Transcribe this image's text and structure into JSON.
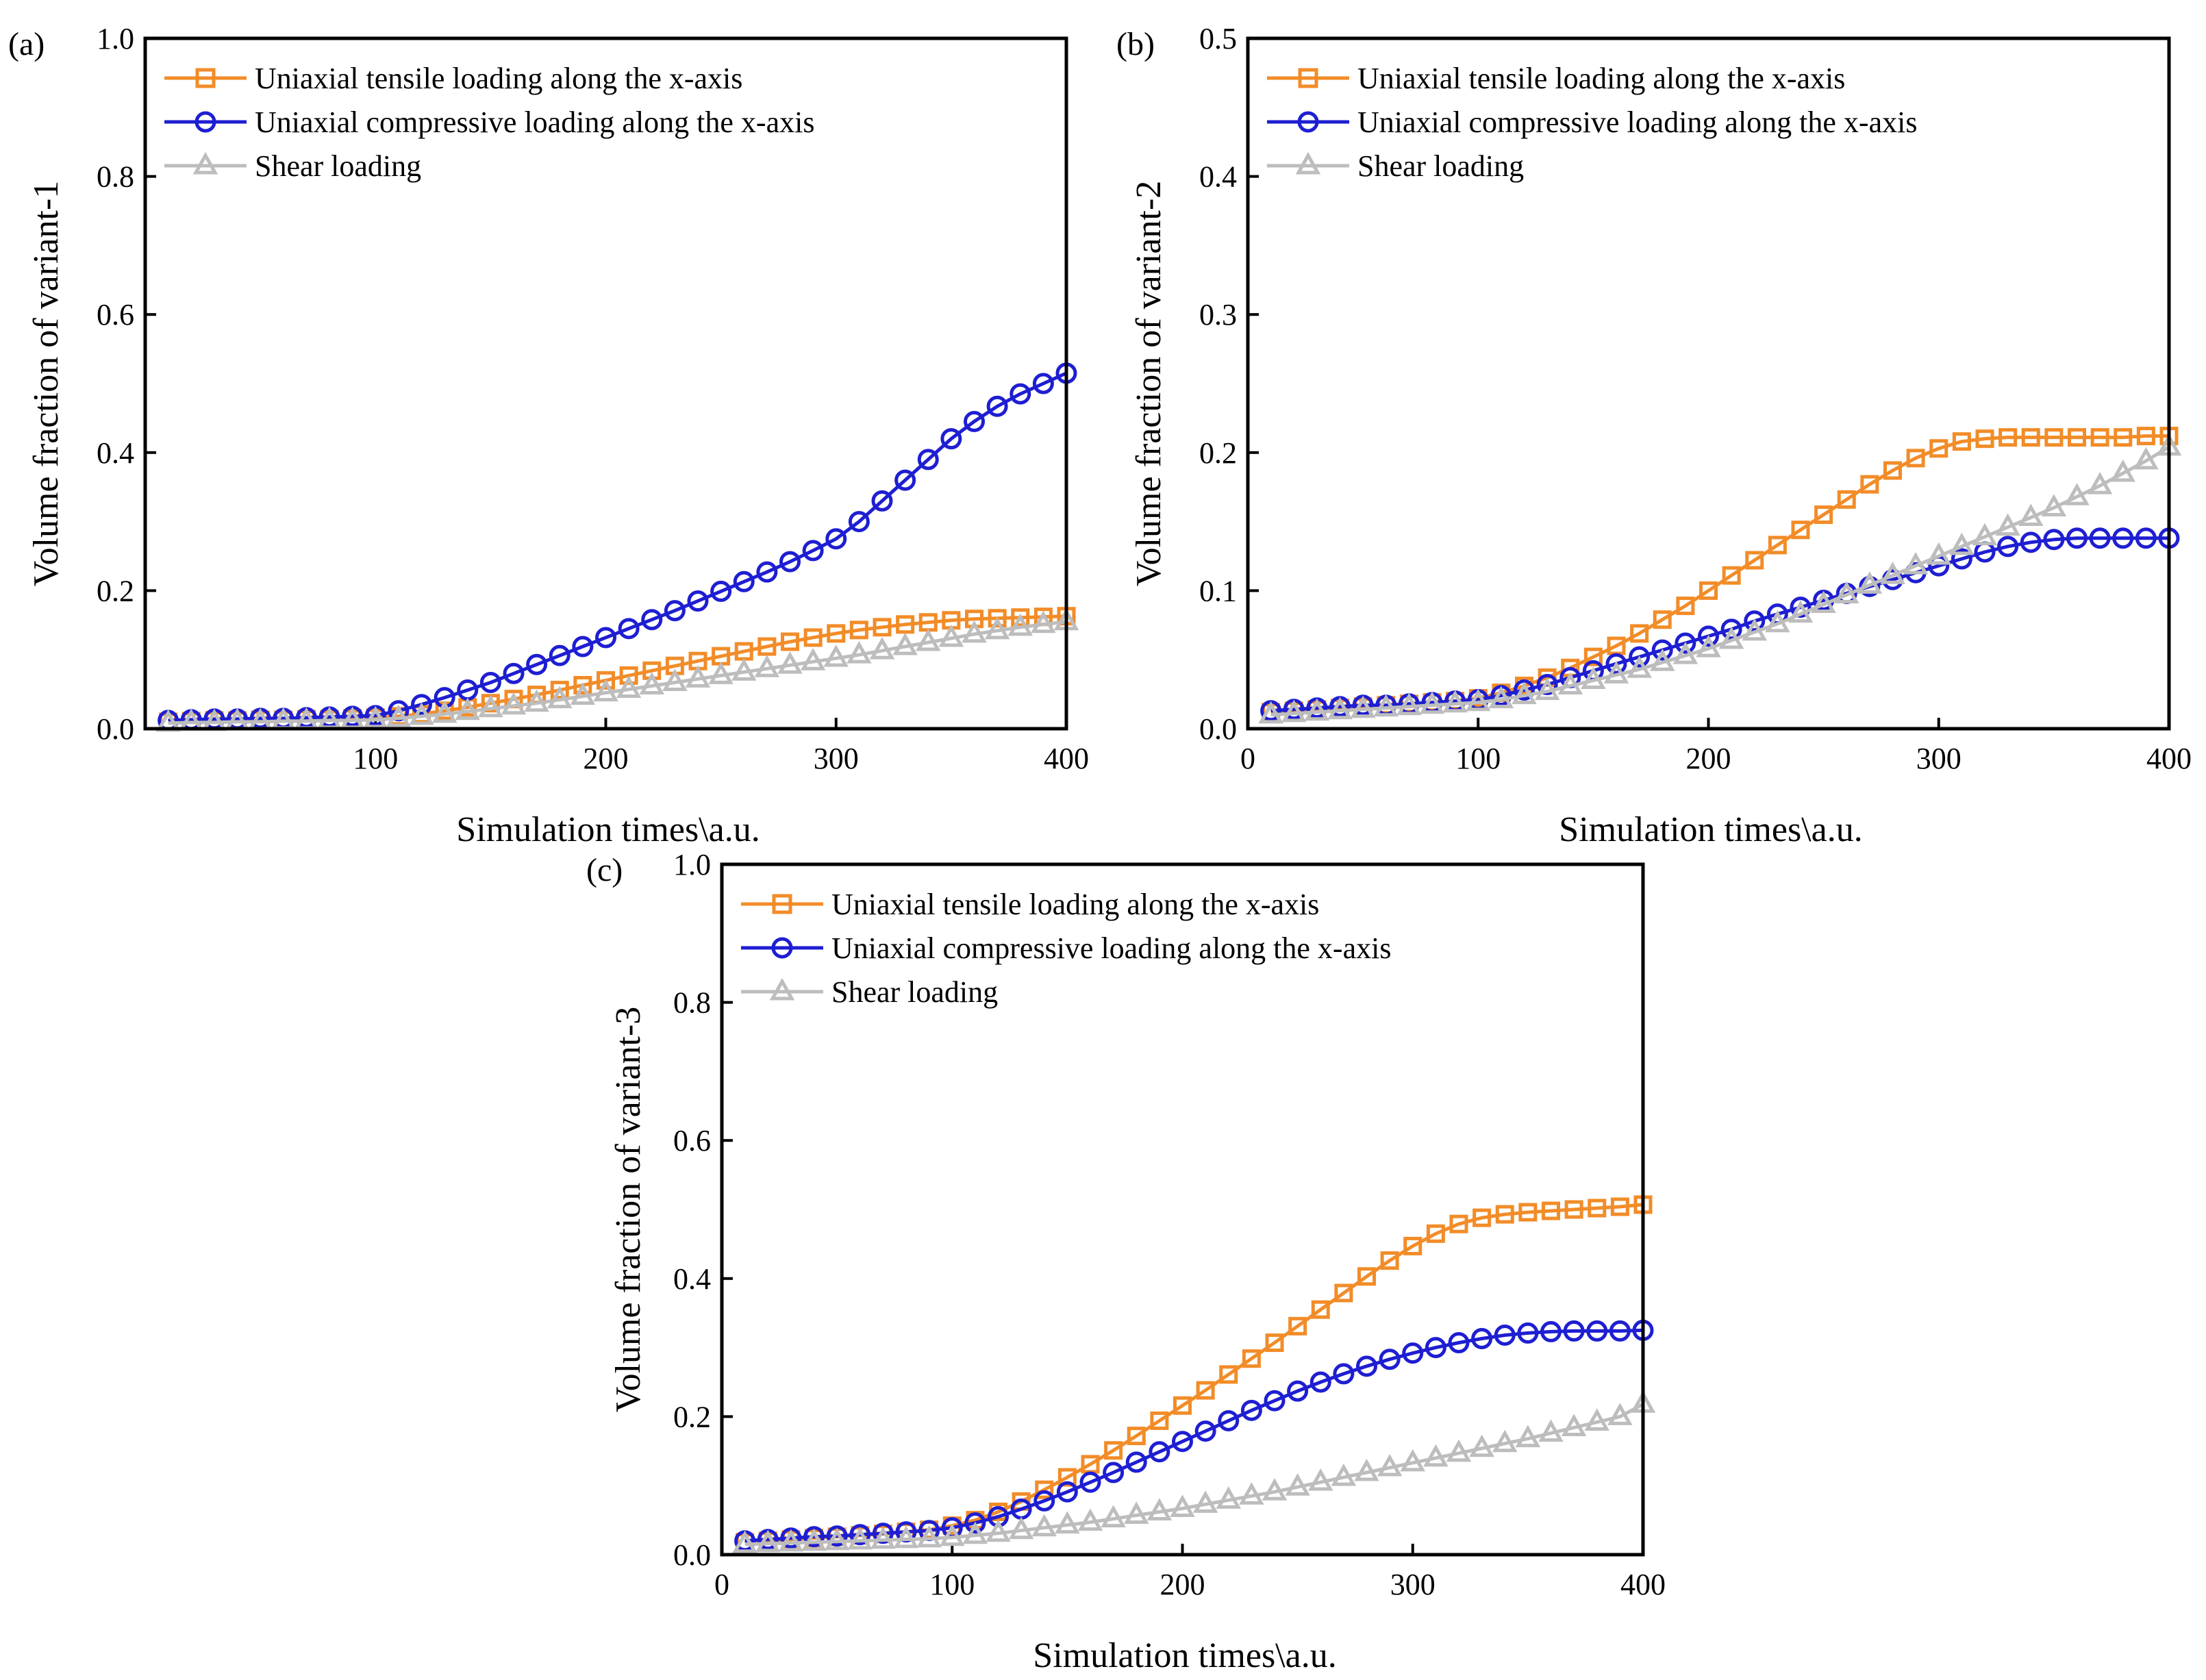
{
  "colors": {
    "tensile": "#F28C28",
    "compressive": "#1E1ED2",
    "shear": "#BDBDBD",
    "axis": "#000000"
  },
  "chart_data": [
    {
      "type": "line",
      "panel_label": "(a)",
      "xlabel": "Simulation  times\\a.u.",
      "ylabel": "Volume fraction of variant-1",
      "xlim": [
        0,
        400
      ],
      "ylim": [
        0.0,
        1.0
      ],
      "xticks": [
        100,
        200,
        300,
        400
      ],
      "xtick_labels": [
        "100",
        "200",
        "300",
        "400"
      ],
      "yticks": [
        0.0,
        0.2,
        0.4,
        0.6,
        0.8,
        1.0
      ],
      "ytick_labels": [
        "0.0",
        "0.2",
        "0.4",
        "0.6",
        "0.8",
        "1.0"
      ],
      "legend_position": "top-left",
      "x": [
        10,
        20,
        30,
        40,
        50,
        60,
        70,
        80,
        90,
        100,
        110,
        120,
        130,
        140,
        150,
        160,
        170,
        180,
        190,
        200,
        210,
        220,
        230,
        240,
        250,
        260,
        270,
        280,
        290,
        300,
        310,
        320,
        330,
        340,
        350,
        360,
        370,
        380,
        390,
        400
      ],
      "series": [
        {
          "name": "Uniaxial tensile loading along the x-axis",
          "marker": "square",
          "color_key": "tensile",
          "values": [
            0.01,
            0.011,
            0.012,
            0.012,
            0.013,
            0.013,
            0.014,
            0.014,
            0.015,
            0.016,
            0.018,
            0.021,
            0.026,
            0.031,
            0.037,
            0.043,
            0.049,
            0.056,
            0.063,
            0.07,
            0.077,
            0.084,
            0.091,
            0.098,
            0.105,
            0.112,
            0.119,
            0.126,
            0.132,
            0.138,
            0.143,
            0.147,
            0.151,
            0.154,
            0.157,
            0.159,
            0.16,
            0.161,
            0.162,
            0.163
          ]
        },
        {
          "name": "Uniaxial compressive loading along the x-axis",
          "marker": "circle",
          "color_key": "compressive",
          "values": [
            0.012,
            0.013,
            0.014,
            0.014,
            0.015,
            0.015,
            0.016,
            0.017,
            0.018,
            0.019,
            0.026,
            0.035,
            0.045,
            0.056,
            0.067,
            0.08,
            0.093,
            0.106,
            0.119,
            0.132,
            0.145,
            0.158,
            0.171,
            0.185,
            0.199,
            0.213,
            0.227,
            0.242,
            0.258,
            0.275,
            0.3,
            0.33,
            0.36,
            0.39,
            0.42,
            0.445,
            0.467,
            0.485,
            0.5,
            0.515
          ]
        },
        {
          "name": "Shear loading",
          "marker": "triangle",
          "color_key": "shear",
          "values": [
            0.008,
            0.009,
            0.009,
            0.01,
            0.01,
            0.011,
            0.011,
            0.012,
            0.012,
            0.013,
            0.015,
            0.018,
            0.021,
            0.025,
            0.029,
            0.033,
            0.037,
            0.042,
            0.047,
            0.052,
            0.057,
            0.062,
            0.067,
            0.072,
            0.077,
            0.082,
            0.087,
            0.092,
            0.097,
            0.102,
            0.107,
            0.113,
            0.119,
            0.125,
            0.131,
            0.137,
            0.142,
            0.147,
            0.151,
            0.155
          ]
        }
      ]
    },
    {
      "type": "line",
      "panel_label": "(b)",
      "xlabel": "Simulation  times\\a.u.",
      "ylabel": "Volume fraction of variant-2",
      "xlim": [
        0,
        400
      ],
      "ylim": [
        0.0,
        0.5
      ],
      "xticks": [
        0,
        100,
        200,
        300,
        400
      ],
      "xtick_labels": [
        "0",
        "100",
        "200",
        "300",
        "400"
      ],
      "yticks": [
        0.0,
        0.1,
        0.2,
        0.3,
        0.4,
        0.5
      ],
      "ytick_labels": [
        "0.0",
        "0.1",
        "0.2",
        "0.3",
        "0.4",
        "0.5"
      ],
      "legend_position": "top-left",
      "x": [
        10,
        20,
        30,
        40,
        50,
        60,
        70,
        80,
        90,
        100,
        110,
        120,
        130,
        140,
        150,
        160,
        170,
        180,
        190,
        200,
        210,
        220,
        230,
        240,
        250,
        260,
        270,
        280,
        290,
        300,
        310,
        320,
        330,
        340,
        350,
        360,
        370,
        380,
        390,
        400
      ],
      "series": [
        {
          "name": "Uniaxial tensile loading along the x-axis",
          "marker": "square",
          "color_key": "tensile",
          "values": [
            0.012,
            0.013,
            0.014,
            0.015,
            0.016,
            0.017,
            0.018,
            0.019,
            0.02,
            0.022,
            0.026,
            0.031,
            0.037,
            0.044,
            0.052,
            0.06,
            0.069,
            0.079,
            0.089,
            0.1,
            0.111,
            0.122,
            0.133,
            0.144,
            0.155,
            0.166,
            0.177,
            0.187,
            0.196,
            0.203,
            0.208,
            0.21,
            0.211,
            0.211,
            0.211,
            0.211,
            0.211,
            0.211,
            0.212,
            0.212
          ]
        },
        {
          "name": "Uniaxial compressive loading along the x-axis",
          "marker": "circle",
          "color_key": "compressive",
          "values": [
            0.013,
            0.014,
            0.015,
            0.016,
            0.017,
            0.017,
            0.018,
            0.019,
            0.02,
            0.021,
            0.024,
            0.028,
            0.032,
            0.037,
            0.042,
            0.047,
            0.052,
            0.057,
            0.062,
            0.067,
            0.072,
            0.078,
            0.083,
            0.088,
            0.093,
            0.098,
            0.103,
            0.108,
            0.113,
            0.118,
            0.123,
            0.128,
            0.132,
            0.135,
            0.137,
            0.138,
            0.138,
            0.138,
            0.138,
            0.138
          ]
        },
        {
          "name": "Shear loading",
          "marker": "triangle",
          "color_key": "shear",
          "values": [
            0.01,
            0.011,
            0.012,
            0.013,
            0.014,
            0.015,
            0.016,
            0.017,
            0.018,
            0.019,
            0.021,
            0.024,
            0.027,
            0.031,
            0.035,
            0.039,
            0.043,
            0.048,
            0.053,
            0.058,
            0.064,
            0.07,
            0.076,
            0.083,
            0.09,
            0.097,
            0.104,
            0.111,
            0.118,
            0.125,
            0.132,
            0.139,
            0.146,
            0.153,
            0.16,
            0.168,
            0.176,
            0.185,
            0.194,
            0.204
          ]
        }
      ]
    },
    {
      "type": "line",
      "panel_label": "(c)",
      "xlabel": "Simulation  times\\a.u.",
      "ylabel": "Volume fraction of variant-3",
      "xlim": [
        0,
        400
      ],
      "ylim": [
        0.0,
        1.0
      ],
      "xticks": [
        0,
        100,
        200,
        300,
        400
      ],
      "xtick_labels": [
        "0",
        "100",
        "200",
        "300",
        "400"
      ],
      "yticks": [
        0.0,
        0.2,
        0.4,
        0.6,
        0.8,
        1.0
      ],
      "ytick_labels": [
        "0.0",
        "0.2",
        "0.4",
        "0.6",
        "0.8",
        "1.0"
      ],
      "legend_position": "top-left",
      "x": [
        10,
        20,
        30,
        40,
        50,
        60,
        70,
        80,
        90,
        100,
        110,
        120,
        130,
        140,
        150,
        160,
        170,
        180,
        190,
        200,
        210,
        220,
        230,
        240,
        250,
        260,
        270,
        280,
        290,
        300,
        310,
        320,
        330,
        340,
        350,
        360,
        370,
        380,
        390,
        400
      ],
      "series": [
        {
          "name": "Uniaxial tensile loading along the x-axis",
          "marker": "square",
          "color_key": "tensile",
          "values": [
            0.018,
            0.02,
            0.022,
            0.024,
            0.026,
            0.028,
            0.03,
            0.033,
            0.036,
            0.042,
            0.05,
            0.062,
            0.077,
            0.094,
            0.112,
            0.131,
            0.151,
            0.172,
            0.194,
            0.216,
            0.238,
            0.261,
            0.284,
            0.307,
            0.331,
            0.355,
            0.379,
            0.403,
            0.426,
            0.447,
            0.465,
            0.479,
            0.488,
            0.493,
            0.496,
            0.498,
            0.5,
            0.502,
            0.504,
            0.507
          ]
        },
        {
          "name": "Uniaxial compressive loading along the x-axis",
          "marker": "circle",
          "color_key": "compressive",
          "values": [
            0.02,
            0.022,
            0.024,
            0.026,
            0.027,
            0.029,
            0.031,
            0.033,
            0.035,
            0.039,
            0.046,
            0.055,
            0.066,
            0.078,
            0.091,
            0.105,
            0.119,
            0.134,
            0.149,
            0.164,
            0.179,
            0.194,
            0.209,
            0.223,
            0.237,
            0.25,
            0.262,
            0.273,
            0.283,
            0.292,
            0.3,
            0.307,
            0.313,
            0.318,
            0.321,
            0.323,
            0.324,
            0.324,
            0.324,
            0.325
          ]
        },
        {
          "name": "Shear loading",
          "marker": "triangle",
          "color_key": "shear",
          "values": [
            0.015,
            0.016,
            0.017,
            0.018,
            0.019,
            0.02,
            0.021,
            0.022,
            0.023,
            0.025,
            0.028,
            0.031,
            0.035,
            0.039,
            0.043,
            0.047,
            0.052,
            0.057,
            0.062,
            0.067,
            0.073,
            0.079,
            0.085,
            0.091,
            0.098,
            0.105,
            0.112,
            0.119,
            0.126,
            0.133,
            0.14,
            0.147,
            0.154,
            0.161,
            0.168,
            0.176,
            0.184,
            0.192,
            0.2,
            0.218
          ]
        }
      ]
    }
  ]
}
